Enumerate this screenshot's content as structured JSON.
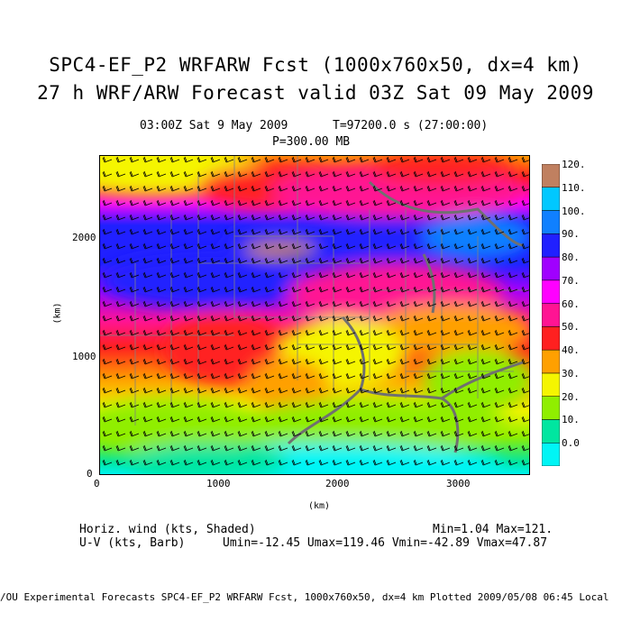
{
  "titles": {
    "line1": "SPC4-EF_P2 WRFARW Fcst (1000x760x50, dx=4 km)",
    "line2": "27 h WRF/ARW Forecast valid 03Z Sat 09 May 2009"
  },
  "subtitle": {
    "time": "03:00Z Sat  9 May 2009",
    "tvalue": "T=97200.0 s (27:00:00)",
    "level": "P=300.00 MB"
  },
  "axes": {
    "ylabel": "(km)",
    "xlabel": "(km)",
    "xticks": [
      "0",
      "1000",
      "2000",
      "3000"
    ],
    "yticks": [
      "0",
      "1000",
      "2000"
    ]
  },
  "colorbar": {
    "levels": [
      "0.0",
      "10.",
      "20.",
      "30.",
      "40.",
      "50.",
      "60.",
      "70.",
      "80.",
      "90.",
      "100.",
      "110.",
      "120."
    ],
    "colors": [
      "#00f5f5",
      "#00e6a0",
      "#90ee00",
      "#f5f500",
      "#ffa000",
      "#ff2020",
      "#ff1493",
      "#ff00ff",
      "#a000ff",
      "#2020ff",
      "#1080ff",
      "#00c8ff",
      "#c08060",
      "#ffd0a0"
    ]
  },
  "footer": {
    "var1": "Horiz. wind (kts, Shaded)",
    "minmax": "Min=1.04 Max=121.",
    "var2": "U-V (kts, Barb)",
    "uvstats": "Umin=-12.45 Umax=119.46 Vmin=-42.89 Vmax=47.87"
  },
  "bottom": {
    "text": "/OU Experimental Forecasts  SPC4-EF_P2 WRFARW Fcst, 1000x760x50, dx=4 km   Plotted 2009/05/08 06:45 Local"
  }
}
